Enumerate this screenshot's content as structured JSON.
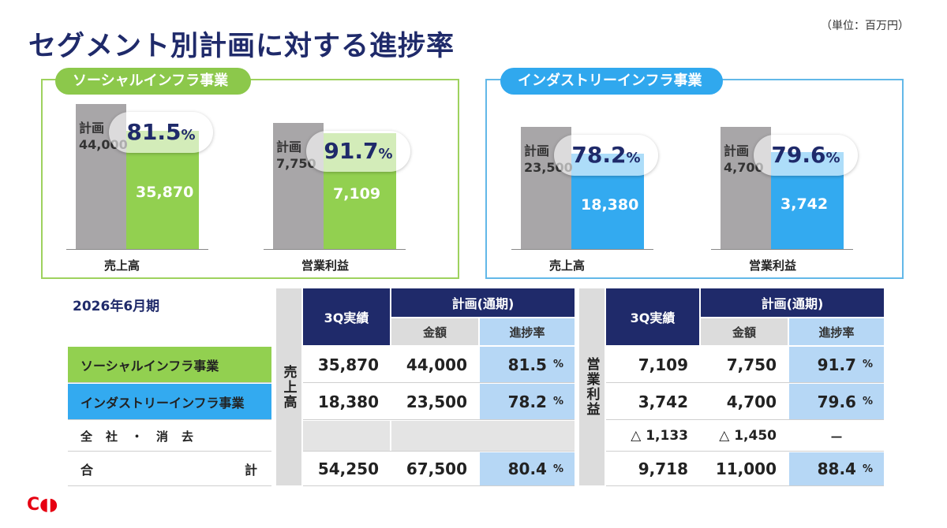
{
  "unit": "（単位：百万円）",
  "title": "セグメント別計画に対する進捗率",
  "fiscal_period": "2026年6月期",
  "logo_glyph": "C◖◗",
  "colors": {
    "social": "#92d050",
    "industry": "#33aaf0",
    "plan": "#a8a6a8",
    "navy": "#1f2a6a"
  },
  "chart_data": [
    {
      "type": "bar",
      "title": "ソーシャルインフラ事業",
      "categories": [
        "売上高",
        "営業利益"
      ],
      "plan_label": "計画",
      "series": [
        {
          "name": "計画",
          "values": [
            44000,
            7750
          ],
          "labels": [
            "44,000",
            "7,750"
          ]
        },
        {
          "name": "3Q実績",
          "values": [
            35870,
            7109
          ],
          "labels": [
            "35,870",
            "7,109"
          ]
        }
      ],
      "progress": [
        {
          "num": "81.5",
          "pct": "%"
        },
        {
          "num": "91.7",
          "pct": "%"
        }
      ]
    },
    {
      "type": "bar",
      "title": "インダストリーインフラ事業",
      "categories": [
        "売上高",
        "営業利益"
      ],
      "plan_label": "計画",
      "series": [
        {
          "name": "計画",
          "values": [
            23500,
            4700
          ],
          "labels": [
            "23,500",
            "4,700"
          ]
        },
        {
          "name": "3Q実績",
          "values": [
            18380,
            3742
          ],
          "labels": [
            "18,380",
            "3,742"
          ]
        }
      ],
      "progress": [
        {
          "num": "78.2",
          "pct": "%"
        },
        {
          "num": "79.6",
          "pct": "%"
        }
      ]
    },
    {
      "type": "table",
      "headers": {
        "actual": "3Q実績",
        "plan_full": "計画(通期)",
        "amount": "金額",
        "progress": "進捗率",
        "sales_side": "売上高",
        "op_side": "営業利益"
      },
      "rows": [
        {
          "label": "ソーシャルインフラ事業",
          "sales": [
            "35,870",
            "44,000",
            "81.5"
          ],
          "op": [
            "7,109",
            "7,750",
            "91.7"
          ]
        },
        {
          "label": "インダストリーインフラ事業",
          "sales": [
            "18,380",
            "23,500",
            "78.2"
          ],
          "op": [
            "3,742",
            "4,700",
            "79.6"
          ]
        },
        {
          "label": "全　社　・　消　去",
          "sales": [
            "",
            "",
            ""
          ],
          "op": [
            "△ 1,133",
            "△ 1,450",
            "－"
          ]
        },
        {
          "label_left": "合",
          "label_right": "計",
          "sales": [
            "54,250",
            "67,500",
            "80.4"
          ],
          "op": [
            "9,718",
            "11,000",
            "88.4"
          ]
        }
      ],
      "pct_sign": "%"
    }
  ]
}
